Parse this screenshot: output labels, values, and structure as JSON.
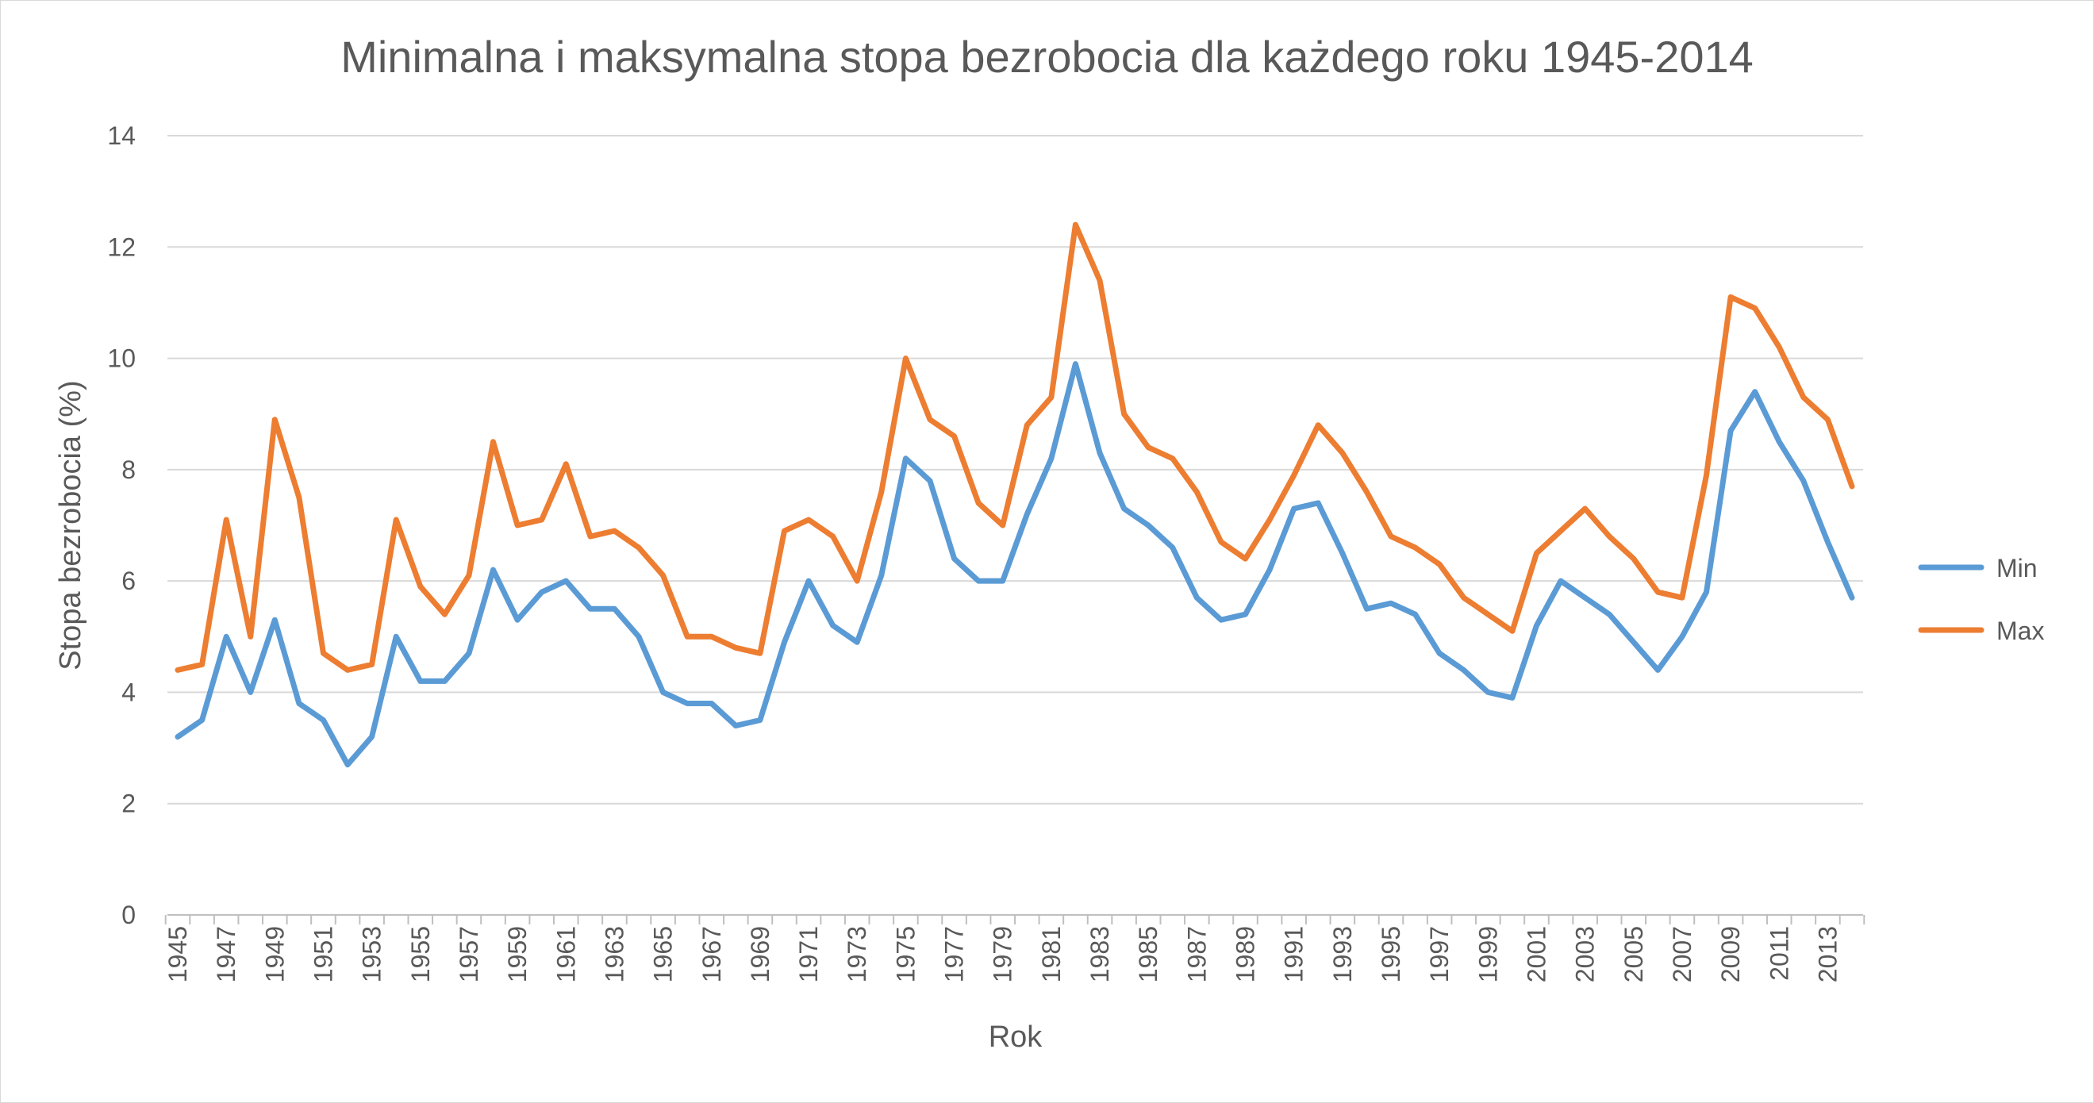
{
  "chart_data": {
    "type": "line",
    "title": "Minimalna i maksymalna stopa bezrobocia dla każdego roku 1945-2014",
    "xlabel": "Rok",
    "ylabel": "Stopa bezrobocia (%)",
    "ylim": [
      0,
      14
    ],
    "yticks": [
      "0",
      "2",
      "4",
      "6",
      "8",
      "10",
      "12",
      "14"
    ],
    "grid": "horizontal",
    "legend_position": "right",
    "x": [
      1945,
      1946,
      1947,
      1948,
      1949,
      1950,
      1951,
      1952,
      1953,
      1954,
      1955,
      1956,
      1957,
      1958,
      1959,
      1960,
      1961,
      1962,
      1963,
      1964,
      1965,
      1966,
      1967,
      1968,
      1969,
      1970,
      1971,
      1972,
      1973,
      1974,
      1975,
      1976,
      1977,
      1978,
      1979,
      1980,
      1981,
      1982,
      1983,
      1984,
      1985,
      1986,
      1987,
      1988,
      1989,
      1990,
      1991,
      1992,
      1993,
      1994,
      1995,
      1996,
      1997,
      1998,
      1999,
      2000,
      2001,
      2002,
      2003,
      2004,
      2005,
      2006,
      2007,
      2008,
      2009,
      2010,
      2011,
      2012,
      2013,
      2014
    ],
    "xtick_labels": [
      "1945",
      "1947",
      "1949",
      "1951",
      "1953",
      "1955",
      "1957",
      "1959",
      "1961",
      "1963",
      "1965",
      "1967",
      "1969",
      "1971",
      "1973",
      "1975",
      "1977",
      "1979",
      "1981",
      "1983",
      "1985",
      "1987",
      "1989",
      "1991",
      "1993",
      "1995",
      "1997",
      "1999",
      "2001",
      "2003",
      "2005",
      "2007",
      "2009",
      "2011",
      "2013"
    ],
    "series": [
      {
        "name": "Min",
        "color": "#5b9bd5",
        "values": [
          3.2,
          3.5,
          5.0,
          4.0,
          5.3,
          3.8,
          3.5,
          2.7,
          3.2,
          5.0,
          4.2,
          4.2,
          4.7,
          6.2,
          5.3,
          5.8,
          6.0,
          5.5,
          5.5,
          5.0,
          4.0,
          3.8,
          3.8,
          3.4,
          3.5,
          4.9,
          6.0,
          5.2,
          4.9,
          6.1,
          8.2,
          7.8,
          6.4,
          6.0,
          6.0,
          7.2,
          8.2,
          9.9,
          8.3,
          7.3,
          7.0,
          6.6,
          5.7,
          5.3,
          5.4,
          6.2,
          7.3,
          7.4,
          6.5,
          5.5,
          5.6,
          5.4,
          4.7,
          4.4,
          4.0,
          3.9,
          5.2,
          6.0,
          5.7,
          5.4,
          4.9,
          4.4,
          5.0,
          5.8,
          8.7,
          9.4,
          8.5,
          7.8,
          6.7,
          5.7
        ]
      },
      {
        "name": "Max",
        "color": "#ed7d31",
        "values": [
          4.4,
          4.5,
          7.1,
          5.0,
          8.9,
          7.5,
          4.7,
          4.4,
          4.5,
          7.1,
          5.9,
          5.4,
          6.1,
          8.5,
          7.0,
          7.1,
          8.1,
          6.8,
          6.9,
          6.6,
          6.1,
          5.0,
          5.0,
          4.8,
          4.7,
          6.9,
          7.1,
          6.8,
          6.0,
          7.6,
          10.0,
          8.9,
          8.6,
          7.4,
          7.0,
          8.8,
          9.3,
          12.4,
          11.4,
          9.0,
          8.4,
          8.2,
          7.6,
          6.7,
          6.4,
          7.1,
          7.9,
          8.8,
          8.3,
          7.6,
          6.8,
          6.6,
          6.3,
          5.7,
          5.4,
          5.1,
          6.5,
          6.9,
          7.3,
          6.8,
          6.4,
          5.8,
          5.7,
          7.9,
          11.1,
          10.9,
          10.2,
          9.3,
          8.9,
          7.7
        ]
      }
    ]
  }
}
